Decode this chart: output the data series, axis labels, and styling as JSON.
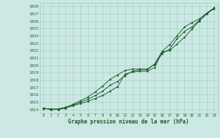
{
  "xlabel": "Graphe pression niveau de la mer (hPa)",
  "bg_color": "#cce8e4",
  "grid_color": "#99ccbb",
  "line_color": "#1a5c2a",
  "xlim": [
    -0.5,
    23.5
  ],
  "ylim": [
    1013.5,
    1028.5
  ],
  "yticks": [
    1014,
    1015,
    1016,
    1017,
    1018,
    1019,
    1020,
    1021,
    1022,
    1023,
    1024,
    1025,
    1026,
    1027,
    1028
  ],
  "xticks": [
    0,
    1,
    2,
    3,
    4,
    5,
    6,
    7,
    8,
    9,
    10,
    11,
    12,
    13,
    14,
    15,
    16,
    17,
    18,
    19,
    20,
    21,
    22,
    23
  ],
  "line1": [
    1014.1,
    1014.1,
    1014.0,
    1014.2,
    1014.5,
    1014.8,
    1015.1,
    1015.5,
    1015.9,
    1016.5,
    1017.1,
    1018.8,
    1019.1,
    1019.2,
    1019.2,
    1019.7,
    1021.8,
    1022.0,
    1022.9,
    1023.8,
    1024.9,
    1026.0,
    1027.0,
    1027.7
  ],
  "line2": [
    1014.2,
    1014.0,
    1014.0,
    1014.2,
    1014.6,
    1015.0,
    1015.4,
    1015.9,
    1016.5,
    1017.3,
    1017.8,
    1018.6,
    1019.2,
    1019.4,
    1019.4,
    1020.2,
    1021.9,
    1022.8,
    1024.0,
    1025.2,
    1025.8,
    1026.3,
    1027.1,
    1027.8
  ],
  "line3": [
    1014.2,
    1014.0,
    1014.1,
    1014.3,
    1014.7,
    1015.2,
    1015.7,
    1016.4,
    1017.2,
    1018.1,
    1018.7,
    1019.3,
    1019.5,
    1019.5,
    1019.5,
    1020.1,
    1021.6,
    1022.2,
    1023.6,
    1024.6,
    1025.2,
    1026.1,
    1027.0,
    1027.8
  ],
  "ytick_fontsize": 4.2,
  "xtick_fontsize": 4.0,
  "xlabel_fontsize": 5.5
}
